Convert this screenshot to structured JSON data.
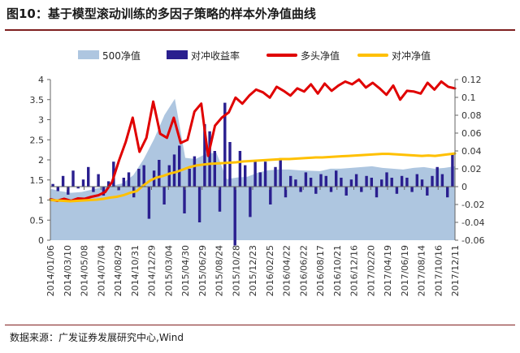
{
  "title": "图10：基于模型滚动训练的多因子策略的样本外净值曲线",
  "source": "数据来源：广发证券发展研究中心,Wind",
  "chart_data": {
    "type": "line",
    "legend_position": "top",
    "grid": false,
    "y_left": {
      "min": 0,
      "max": 4,
      "ticks": [
        "0",
        "0.5",
        "1",
        "1.5",
        "2",
        "2.5",
        "3",
        "3.5",
        "4"
      ]
    },
    "y_right": {
      "min": -0.06,
      "max": 0.12,
      "ticks": [
        "-0.06",
        "-0.04",
        "-0.02",
        "0",
        "0.02",
        "0.04",
        "0.06",
        "0.08",
        "0.1",
        "0.12"
      ]
    },
    "x_ticks": [
      "2014/01/06",
      "2014/03/10",
      "2014/05/08",
      "2014/07/04",
      "2014/08/29",
      "2014/10/31",
      "2014/12/29",
      "2015/03/04",
      "2015/04/30",
      "2015/06/29",
      "2015/08/24",
      "2015/10/28",
      "2015/12/23",
      "2016/02/25",
      "2016/04/22",
      "2016/06/22",
      "2016/08/17",
      "2016/10/21",
      "2016/12/16",
      "2017/02/20",
      "2017/04/19",
      "2017/06/19",
      "2017/08/14",
      "2017/10/16",
      "2017/12/11"
    ],
    "series": [
      {
        "name": "500净值",
        "type": "area",
        "axis": "left",
        "color": "#aec6e0",
        "values": [
          1.28,
          1.22,
          1.18,
          1.2,
          1.26,
          1.32,
          1.36,
          1.42,
          1.62,
          2.02,
          2.52,
          3.12,
          3.52,
          2.05,
          2.02,
          2.15,
          2.18,
          1.52,
          1.56,
          1.58,
          1.68,
          1.74,
          1.76,
          1.76,
          1.74,
          1.73,
          1.72,
          1.78,
          1.78,
          1.8,
          1.82,
          1.84,
          1.8,
          1.78,
          1.76,
          1.8,
          1.82,
          1.78,
          1.8,
          1.84
        ]
      },
      {
        "name": "对冲收益率",
        "type": "bar",
        "axis": "right",
        "color": "#2a1f8f",
        "values": [
          0.003,
          -0.005,
          0.012,
          -0.009,
          0.018,
          -0.002,
          0.008,
          0.022,
          -0.006,
          0.014,
          -0.01,
          0.006,
          0.028,
          -0.004,
          0.01,
          0.016,
          -0.012,
          0.02,
          0.024,
          -0.036,
          0.018,
          0.03,
          -0.02,
          0.024,
          0.036,
          0.046,
          -0.03,
          0.02,
          0.034,
          -0.04,
          0.07,
          0.062,
          0.04,
          -0.028,
          0.094,
          0.05,
          -0.066,
          0.04,
          0.024,
          -0.034,
          0.03,
          0.016,
          0.028,
          -0.02,
          0.022,
          0.032,
          -0.012,
          0.012,
          0.008,
          -0.006,
          0.016,
          0.01,
          -0.008,
          0.014,
          0.012,
          -0.006,
          0.018,
          0.01,
          -0.01,
          0.008,
          0.014,
          -0.006,
          0.012,
          0.01,
          -0.012,
          0.008,
          0.016,
          0.01,
          -0.008,
          0.012,
          0.01,
          -0.006,
          0.014,
          0.008,
          -0.01,
          0.012,
          0.022,
          0.014,
          -0.012,
          0.036
        ]
      },
      {
        "name": "多头净值",
        "type": "line",
        "axis": "left",
        "color": "#e00000",
        "values": [
          1.02,
          0.98,
          1.03,
          0.98,
          1.04,
          1.03,
          1.08,
          1.12,
          1.2,
          1.45,
          1.98,
          2.45,
          3.05,
          2.2,
          2.55,
          3.45,
          2.65,
          2.55,
          3.05,
          2.42,
          2.5,
          3.2,
          3.4,
          2.1,
          2.85,
          3.05,
          3.18,
          3.55,
          3.4,
          3.6,
          3.75,
          3.68,
          3.55,
          3.82,
          3.72,
          3.6,
          3.78,
          3.7,
          3.88,
          3.65,
          3.9,
          3.72,
          3.85,
          3.95,
          3.88,
          4.0,
          3.8,
          3.92,
          3.78,
          3.62,
          3.85,
          3.5,
          3.72,
          3.7,
          3.65,
          3.92,
          3.75,
          3.95,
          3.82,
          3.78
        ]
      },
      {
        "name": "对冲净值",
        "type": "line",
        "axis": "left",
        "color": "#ffc000",
        "values": [
          1.0,
          0.99,
          0.98,
          0.97,
          0.98,
          0.99,
          1.0,
          1.01,
          1.03,
          1.06,
          1.08,
          1.12,
          1.18,
          1.22,
          1.36,
          1.48,
          1.56,
          1.6,
          1.66,
          1.7,
          1.76,
          1.82,
          1.86,
          1.88,
          1.9,
          1.91,
          1.92,
          1.93,
          1.94,
          1.96,
          1.97,
          1.98,
          1.99,
          2.0,
          2.01,
          2.02,
          2.02,
          2.03,
          2.04,
          2.05,
          2.06,
          2.06,
          2.07,
          2.08,
          2.09,
          2.1,
          2.11,
          2.12,
          2.13,
          2.14,
          2.15,
          2.15,
          2.14,
          2.13,
          2.12,
          2.11,
          2.1,
          2.11,
          2.1,
          2.12,
          2.14,
          2.16
        ]
      }
    ]
  }
}
